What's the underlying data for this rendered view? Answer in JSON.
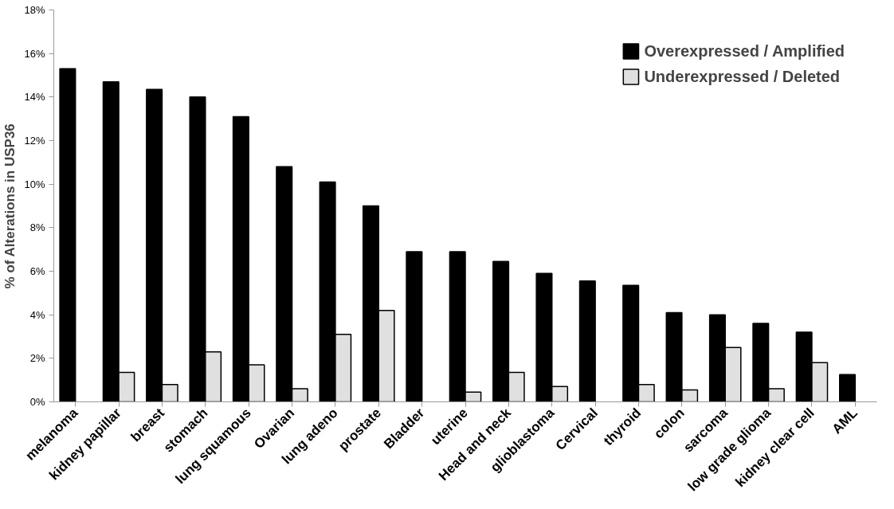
{
  "chart_data": {
    "type": "bar",
    "ylabel": "% of Alterations in USP36",
    "categories": [
      "melanoma",
      "kidney papillar",
      "breast",
      "stomach",
      "lung squamous",
      "Ovarian",
      "lung adeno",
      "prostate",
      "Bladder",
      "uterine",
      "Head and neck",
      "glioblastoma",
      "Cervical",
      "thyroid",
      "colon",
      "sarcoma",
      "low grade glioma",
      "kidney clear cell",
      "AML"
    ],
    "series": [
      {
        "name": "Overexpressed / Amplified",
        "color": "#000000",
        "values": [
          15.3,
          14.7,
          14.35,
          14.0,
          13.1,
          10.8,
          10.1,
          9.0,
          6.9,
          6.9,
          6.45,
          5.9,
          5.55,
          5.35,
          4.1,
          4.0,
          3.6,
          3.2,
          1.25
        ]
      },
      {
        "name": "Underexpressed / Deleted",
        "color": "#e0e0e0",
        "values": [
          null,
          1.35,
          0.8,
          2.3,
          1.7,
          0.6,
          3.1,
          4.2,
          null,
          0.45,
          1.35,
          0.7,
          null,
          0.8,
          0.55,
          2.5,
          0.6,
          1.8,
          null
        ]
      }
    ],
    "ylim": [
      0,
      18
    ],
    "yticks": [
      {
        "value": 0,
        "label": "0%"
      },
      {
        "value": 2,
        "label": "2%"
      },
      {
        "value": 4,
        "label": "4%"
      },
      {
        "value": 6,
        "label": "6%"
      },
      {
        "value": 8,
        "label": "8%"
      },
      {
        "value": 10,
        "label": "10%"
      },
      {
        "value": 12,
        "label": "12%"
      },
      {
        "value": 14,
        "label": "14%"
      },
      {
        "value": 16,
        "label": "16%"
      },
      {
        "value": 18,
        "label": "18%"
      }
    ],
    "grid": false,
    "legend": "top right"
  }
}
